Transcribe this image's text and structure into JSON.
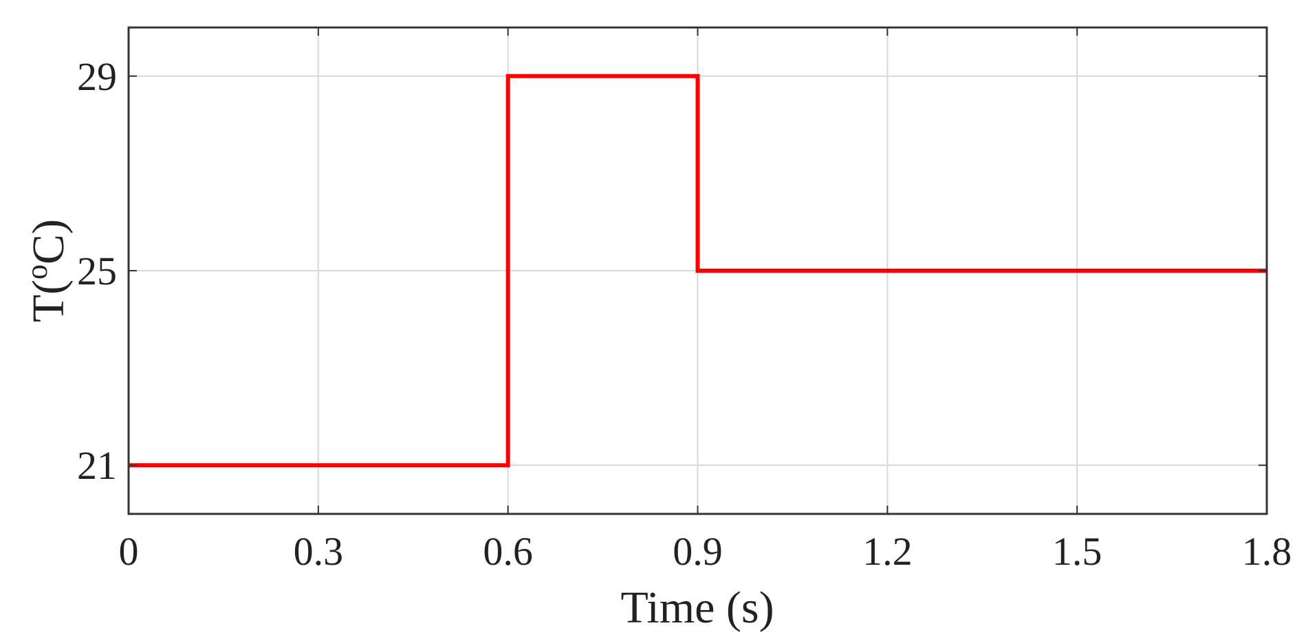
{
  "chart_data": {
    "type": "line",
    "title": "",
    "xlabel": "Time (s)",
    "ylabel_prefix": "T(",
    "ylabel_superscript": "o",
    "ylabel_suffix": "C)",
    "xlim": [
      0,
      1.8
    ],
    "ylim": [
      20,
      30
    ],
    "x_ticks": [
      0,
      0.3,
      0.6,
      0.9,
      1.2,
      1.5,
      1.8
    ],
    "x_tick_labels": [
      "0",
      "0.3",
      "0.6",
      "0.9",
      "1.2",
      "1.5",
      "1.8"
    ],
    "y_ticks": [
      21,
      25,
      29
    ],
    "y_tick_labels": [
      "21",
      "25",
      "29"
    ],
    "grid": true,
    "series": [
      {
        "color": "#ff0000",
        "x": [
          0,
          0.6,
          0.6,
          0.9,
          0.9,
          1.8
        ],
        "y": [
          21,
          21,
          29,
          29,
          25,
          25
        ]
      }
    ]
  }
}
